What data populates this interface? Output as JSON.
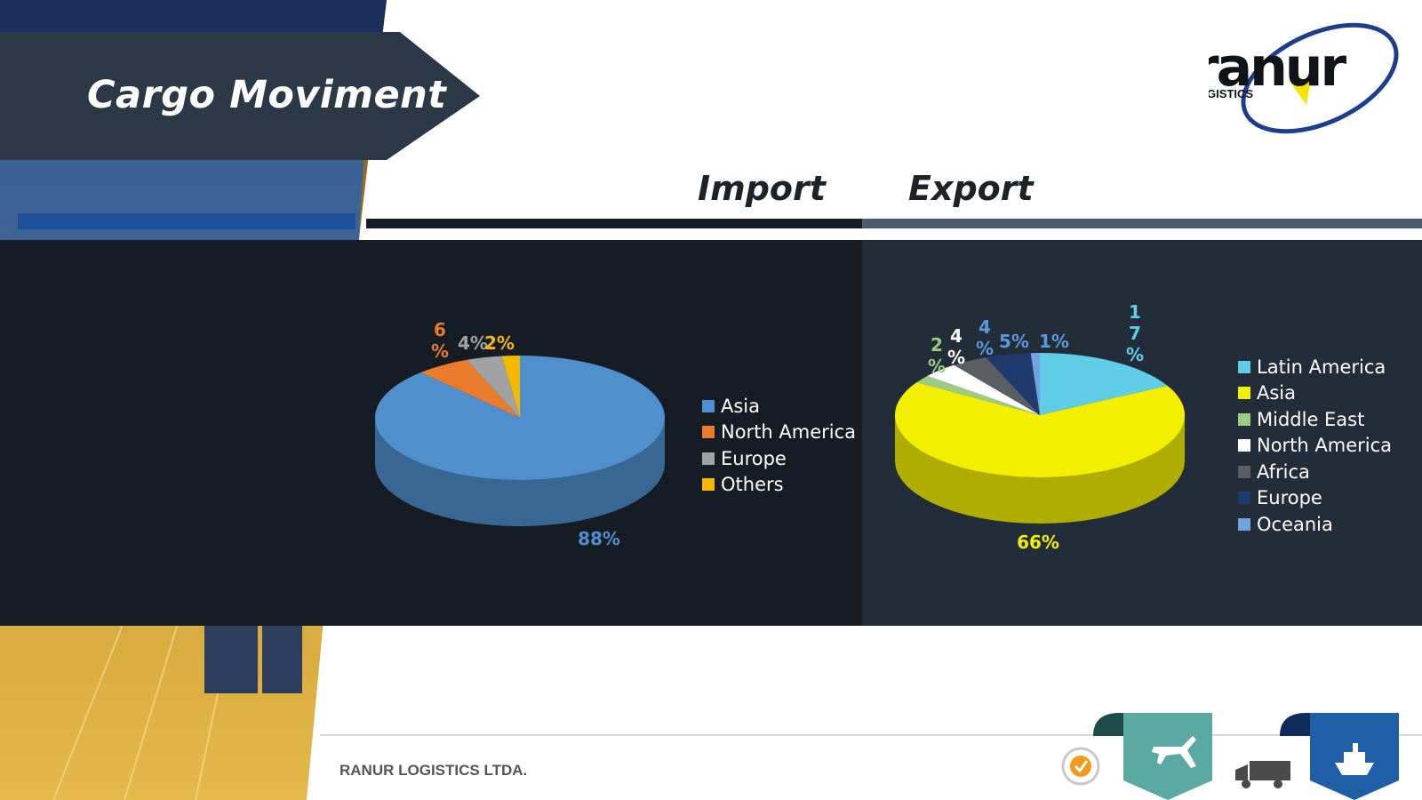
{
  "title": "Cargo Moviment",
  "logo": {
    "word": "ranur",
    "subtitle": "LOGISTICS"
  },
  "headers": {
    "import": "Import",
    "export": "Export"
  },
  "footer": {
    "company": "RANUR LOGISTICS LTDA."
  },
  "icons": [
    "sgs-cert-icon",
    "airplane-icon",
    "truck-icon",
    "ship-icon"
  ],
  "chart_data": [
    {
      "type": "pie",
      "title": "Import",
      "categories": [
        "Asia",
        "North America",
        "Europe",
        "Others"
      ],
      "values": [
        88,
        6,
        4,
        2
      ],
      "labels": [
        "88%",
        "6%",
        "4%",
        "2%"
      ],
      "colors": [
        "#4f8fcd",
        "#e87b2c",
        "#a0a2a4",
        "#f5b800"
      ],
      "legend_position": "right"
    },
    {
      "type": "pie",
      "title": "Export",
      "categories": [
        "Latin America",
        "Asia",
        "Middle East",
        "North America",
        "Africa",
        "Europe",
        "Oceania"
      ],
      "values": [
        17,
        66,
        2,
        4,
        4,
        5,
        1
      ],
      "labels": [
        "17%",
        "66%",
        "2%",
        "4%",
        "4%",
        "5%",
        "1%"
      ],
      "colors": [
        "#5fcde6",
        "#f2f000",
        "#9ccb84",
        "#ffffff",
        "#5a5d62",
        "#1f3a6e",
        "#6fa5dc"
      ],
      "legend_position": "right"
    }
  ]
}
